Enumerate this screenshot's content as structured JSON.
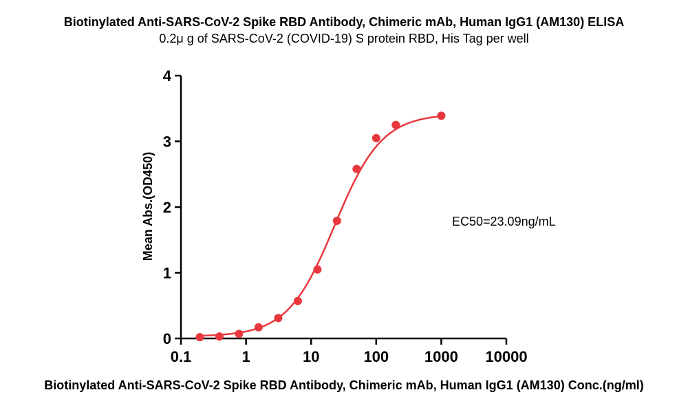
{
  "chart_data": {
    "type": "scatter",
    "title": "Biotinylated Anti-SARS-CoV-2 Spike RBD Antibody, Chimeric mAb, Human IgG1 (AM130)  ELISA",
    "subtitle": "0.2μ g of SARS-CoV-2 (COVID-19) S protein RBD, His Tag per well",
    "xlabel": "Biotinylated Anti-SARS-CoV-2 Spike RBD Antibody, Chimeric mAb, Human IgG1 (AM130) Conc.(ng/ml)",
    "ylabel": "Mean Abs.(OD450)",
    "x_scale": "log",
    "xlim": [
      0.1,
      10000
    ],
    "ylim": [
      0,
      4
    ],
    "x_ticks": [
      "0.1",
      "1",
      "10",
      "100",
      "1000",
      "10000"
    ],
    "y_ticks": [
      "0",
      "1",
      "2",
      "3",
      "4"
    ],
    "annotation": "EC50=23.09ng/mL",
    "color": "#e8383d",
    "series": [
      {
        "x": [
          0.195,
          0.39,
          0.78,
          1.56,
          3.125,
          6.25,
          12.5,
          25,
          50,
          100,
          200,
          1000
        ],
        "y": [
          0.02,
          0.03,
          0.07,
          0.17,
          0.31,
          0.57,
          1.05,
          1.79,
          2.58,
          3.05,
          3.25,
          3.39
        ]
      }
    ],
    "fit": {
      "bottom": 0.03,
      "top": 3.42,
      "ec50": 23.09,
      "hill": 1.2
    }
  }
}
